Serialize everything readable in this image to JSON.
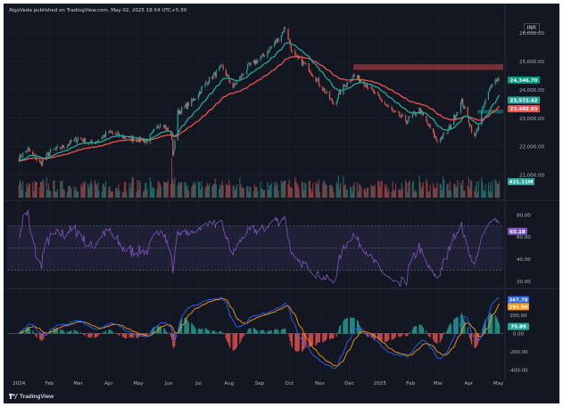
{
  "header": {
    "publish_line": "AlgoVeda published on TradingView.com, May 02, 2025 18:54 UTC+5:30",
    "currency": "INR"
  },
  "footer": {
    "brand": "TradingView"
  },
  "colors": {
    "bg": "#131722",
    "grid": "#1f2433",
    "up": "#26a69a",
    "down": "#ef5350",
    "ema_fast": "#26a69a",
    "ema_slow": "#ef5350",
    "rsi": "#7e57c2",
    "macd": "#2962ff",
    "signal": "#ff9800",
    "resistance": "#ef5350",
    "support": "#26a69a"
  },
  "chart_data": [
    {
      "type": "candlestick",
      "name": "price",
      "ylim": [
        20200,
        26600
      ],
      "y_ticks": [
        "26,000.00",
        "25,000.00",
        "24,000.00",
        "23,000.00",
        "22,000.00",
        "21,000.00"
      ],
      "y_tick_values": [
        26000,
        25000,
        24000,
        23000,
        22000,
        21000
      ],
      "x_ticks": [
        "2024",
        "Feb",
        "Mar",
        "Apr",
        "May",
        "Jun",
        "Jul",
        "Aug",
        "Sep",
        "Oct",
        "Nov",
        "Dec",
        "2025",
        "Feb",
        "Mar",
        "Apr",
        "May"
      ],
      "price_path": [
        [
          "2024-01-01",
          21600
        ],
        [
          "2024-01-10",
          21900
        ],
        [
          "2024-01-23",
          21400
        ],
        [
          "2024-02-01",
          21800
        ],
        [
          "2024-02-15",
          22000
        ],
        [
          "2024-03-01",
          22300
        ],
        [
          "2024-03-15",
          22100
        ],
        [
          "2024-04-01",
          22500
        ],
        [
          "2024-04-20",
          22300
        ],
        [
          "2024-05-10",
          22200
        ],
        [
          "2024-05-25",
          22900
        ],
        [
          "2024-06-04",
          22300
        ],
        [
          "2024-06-04",
          21300
        ],
        [
          "2024-06-10",
          23200
        ],
        [
          "2024-06-25",
          23600
        ],
        [
          "2024-07-10",
          24300
        ],
        [
          "2024-07-25",
          24800
        ],
        [
          "2024-08-05",
          24100
        ],
        [
          "2024-08-20",
          24800
        ],
        [
          "2024-09-05",
          25200
        ],
        [
          "2024-09-20",
          25800
        ],
        [
          "2024-09-27",
          26200
        ],
        [
          "2024-10-05",
          25200
        ],
        [
          "2024-10-20",
          24800
        ],
        [
          "2024-11-01",
          24200
        ],
        [
          "2024-11-15",
          23500
        ],
        [
          "2024-11-25",
          24100
        ],
        [
          "2024-12-05",
          24500
        ],
        [
          "2024-12-15",
          24300
        ],
        [
          "2024-12-31",
          23700
        ],
        [
          "2025-01-15",
          23200
        ],
        [
          "2025-01-28",
          22900
        ],
        [
          "2025-02-10",
          23300
        ],
        [
          "2025-02-28",
          22200
        ],
        [
          "2025-03-10",
          22500
        ],
        [
          "2025-03-25",
          23600
        ],
        [
          "2025-04-07",
          22300
        ],
        [
          "2025-04-15",
          23300
        ],
        [
          "2025-04-25",
          24300
        ],
        [
          "2025-05-02",
          24400
        ]
      ],
      "ema_fast_label": "23,572.42",
      "ema_fast_value": 23572.42,
      "ema_slow_label": "23,489.93",
      "ema_slow_value": 23489.93,
      "last_price_label": "24,346.70",
      "last_price_value": 24346.7,
      "resistance_zone": [
        24700,
        24900
      ],
      "support_zone": [
        23200,
        23300
      ],
      "volume_label": "421.11M",
      "volume_value": 421.11
    },
    {
      "type": "line",
      "name": "RSI",
      "ylim": [
        15,
        90
      ],
      "y_ticks": [
        "80.00",
        "60.00",
        "40.00",
        "20.00"
      ],
      "y_tick_values": [
        80,
        60,
        40,
        20
      ],
      "band": [
        30,
        70
      ],
      "value_label": "65.18",
      "value": 65.18
    },
    {
      "type": "macd",
      "name": "MACD",
      "ylim": [
        -480,
        460
      ],
      "y_ticks": [
        "200.00",
        "0.00",
        "-200.00",
        "-400.00"
      ],
      "y_tick_values": [
        200,
        0,
        -200,
        -400
      ],
      "macd_label": "367.78",
      "macd_value": 367.78,
      "signal_label": "291.89",
      "signal_value": 291.89,
      "hist_label": "75.89",
      "hist_value": 75.89
    }
  ]
}
